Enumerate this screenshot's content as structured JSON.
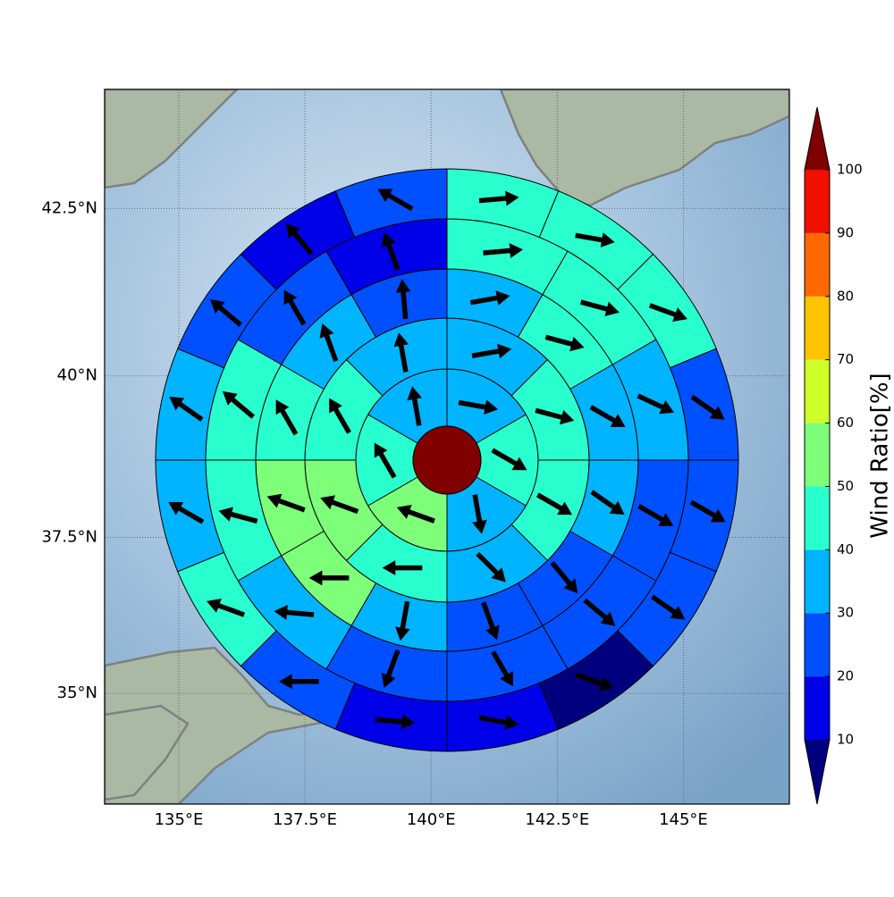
{
  "chart_data": {
    "type": "polar-sector-map",
    "xlim": [
      133.53,
      147.1
    ],
    "ylim": [
      33.18,
      44.22
    ],
    "xticks": [
      {
        "value": 135,
        "label": "135°E"
      },
      {
        "value": 137.5,
        "label": "137.5°E"
      },
      {
        "value": 140,
        "label": "140°E"
      },
      {
        "value": 142.5,
        "label": "142.5°E"
      },
      {
        "value": 145,
        "label": "145°E"
      }
    ],
    "yticks": [
      {
        "value": 35,
        "label": "35°N"
      },
      {
        "value": 37.5,
        "label": "37.5°N"
      },
      {
        "value": 40,
        "label": "40°N"
      },
      {
        "value": 42.5,
        "label": "42.5°N"
      }
    ],
    "grid": true,
    "rings": [
      {
        "values": [
          35,
          45,
          35,
          55,
          45,
          35
        ],
        "directions": [
          100,
          120,
          170,
          290,
          330,
          350
        ]
      },
      {
        "values": [
          35,
          45,
          45,
          35,
          45,
          55,
          45,
          35
        ],
        "directions": [
          80,
          105,
          120,
          135,
          270,
          290,
          330,
          350
        ]
      },
      {
        "values": [
          35,
          45,
          35,
          35,
          25,
          25,
          35,
          55,
          55,
          45,
          35,
          25
        ],
        "directions": [
          80,
          105,
          120,
          125,
          140,
          160,
          190,
          270,
          290,
          330,
          340,
          355
        ]
      },
      {
        "values": [
          45,
          45,
          35,
          25,
          25,
          25,
          25,
          35,
          45,
          45,
          25,
          15
        ],
        "directions": [
          85,
          105,
          115,
          120,
          130,
          150,
          200,
          275,
          285,
          310,
          330,
          340
        ]
      },
      {
        "values": [
          45,
          45,
          45,
          25,
          25,
          25,
          5,
          15,
          15,
          25,
          45,
          35,
          35,
          25,
          15,
          25
        ],
        "directions": [
          85,
          100,
          110,
          125,
          120,
          125,
          110,
          100,
          95,
          270,
          290,
          300,
          305,
          310,
          320,
          300
        ]
      }
    ],
    "colorbar": {
      "label": "Wind Ratio[%]",
      "ticks": [
        10,
        20,
        30,
        40,
        50,
        60,
        70,
        80,
        90,
        100
      ],
      "colors": [
        "#0000e8",
        "#0050ff",
        "#00b4ff",
        "#29ffce",
        "#7dff7a",
        "#ceff29",
        "#ffc400",
        "#ff6800",
        "#f10f00"
      ],
      "under": "#00007f",
      "over": "#7f0000"
    }
  }
}
